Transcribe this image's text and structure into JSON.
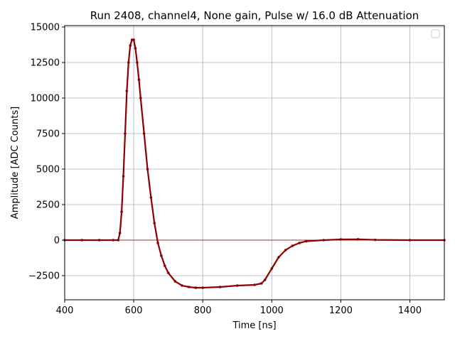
{
  "chart_data": {
    "type": "scatter",
    "title": "Run 2408, channel4, None gain, Pulse w/ 16.0 dB Attenuation",
    "xlabel": "Time [ns]",
    "ylabel": "Amplitude [ADC Counts]",
    "xlim": [
      400,
      1500
    ],
    "ylim": [
      -4200,
      15100
    ],
    "xticks": [
      400,
      600,
      800,
      1000,
      1200,
      1400
    ],
    "yticks": [
      -2500,
      0,
      2500,
      5000,
      7500,
      10000,
      12500,
      15000
    ],
    "grid": true,
    "legend": "top-right",
    "marker_color": "#8b0000",
    "series": [
      {
        "x": [
          400,
          450,
          500,
          540,
          555,
          560,
          565,
          570,
          575,
          580,
          585,
          590,
          595,
          600,
          605,
          610,
          615,
          620,
          630,
          640,
          650,
          660,
          670,
          680,
          690,
          700,
          720,
          740,
          760,
          780,
          800,
          850,
          900,
          950,
          970,
          980,
          1000,
          1020,
          1040,
          1060,
          1080,
          1100,
          1150,
          1200,
          1250,
          1300,
          1400,
          1500
        ],
        "y": [
          0,
          0,
          0,
          0,
          0,
          500,
          2000,
          4500,
          7500,
          10500,
          12500,
          13700,
          14100,
          14100,
          13500,
          12500,
          11300,
          10000,
          7500,
          5000,
          3000,
          1200,
          -200,
          -1100,
          -1800,
          -2300,
          -2900,
          -3200,
          -3300,
          -3350,
          -3350,
          -3300,
          -3200,
          -3150,
          -3050,
          -2800,
          -2000,
          -1200,
          -700,
          -400,
          -200,
          -80,
          0,
          50,
          60,
          20,
          0,
          0
        ]
      }
    ]
  }
}
